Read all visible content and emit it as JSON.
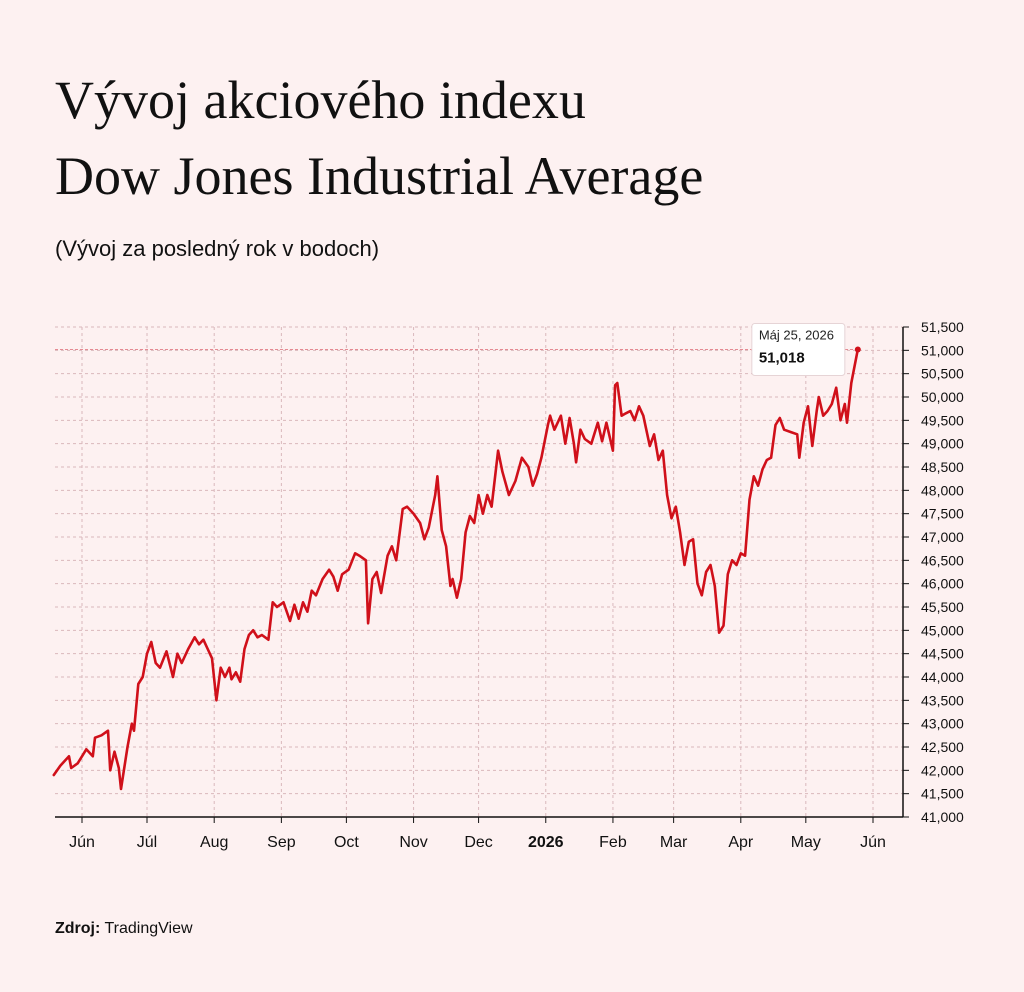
{
  "title_line1": "Vývoj akciového indexu",
  "title_line2": "Dow Jones Industrial Average",
  "subtitle": "(Vývoj za posledný rok v bodoch)",
  "source_label": "Zdroj:",
  "source_name": "TradingView",
  "colors": {
    "background": "#fdf1f1",
    "line": "#d0101a",
    "grid": "#d9b8bc",
    "axis": "#111111"
  },
  "chart_data": {
    "type": "line",
    "title": "Vývoj akciového indexu Dow Jones Industrial Average",
    "subtitle": "(Vývoj za posledný rok v bodoch)",
    "xlabel": "",
    "ylabel": "",
    "ylim": [
      41000,
      51500
    ],
    "y_ticks": [
      41000,
      41500,
      42000,
      42500,
      43000,
      43500,
      44000,
      44500,
      45000,
      45500,
      46000,
      46500,
      47000,
      47500,
      48000,
      48500,
      49000,
      49500,
      50000,
      50500,
      51000,
      51500
    ],
    "y_tick_labels": [
      "41,000",
      "41,500",
      "42,000",
      "42,500",
      "43,000",
      "43,500",
      "44,000",
      "44,500",
      "45,000",
      "45,500",
      "46,000",
      "46,500",
      "47,000",
      "47,500",
      "48,000",
      "48,500",
      "49,000",
      "49,500",
      "50,000",
      "50,500",
      "51,000",
      "51,500"
    ],
    "x_ticks": [
      {
        "label": "Jún",
        "date": "2025-06-01",
        "bold": false
      },
      {
        "label": "Júl",
        "date": "2025-07-01",
        "bold": false
      },
      {
        "label": "Aug",
        "date": "2025-08-01",
        "bold": false
      },
      {
        "label": "Sep",
        "date": "2025-09-01",
        "bold": false
      },
      {
        "label": "Oct",
        "date": "2025-10-01",
        "bold": false
      },
      {
        "label": "Nov",
        "date": "2025-11-01",
        "bold": false
      },
      {
        "label": "Dec",
        "date": "2025-12-01",
        "bold": false
      },
      {
        "label": "2026",
        "date": "2026-01-01",
        "bold": true
      },
      {
        "label": "Feb",
        "date": "2026-02-01",
        "bold": false
      },
      {
        "label": "Mar",
        "date": "2026-03-01",
        "bold": false
      },
      {
        "label": "Apr",
        "date": "2026-04-01",
        "bold": false
      },
      {
        "label": "May",
        "date": "2026-05-01",
        "bold": false
      },
      {
        "label": "Jún",
        "date": "2026-06-01",
        "bold": false
      }
    ],
    "grid": true,
    "tooltip": {
      "date_label": "Máj 25, 2026",
      "value_label": "51,018",
      "date": "2026-05-25",
      "value": 51018
    },
    "series": [
      {
        "values": [
          [
            "2025-05-19",
            41900
          ],
          [
            "2025-05-22",
            42100
          ],
          [
            "2025-05-26",
            42300
          ],
          [
            "2025-05-27",
            42050
          ],
          [
            "2025-05-30",
            42150
          ],
          [
            "2025-06-03",
            42450
          ],
          [
            "2025-06-06",
            42300
          ],
          [
            "2025-06-07",
            42700
          ],
          [
            "2025-06-10",
            42750
          ],
          [
            "2025-06-13",
            42850
          ],
          [
            "2025-06-14",
            42000
          ],
          [
            "2025-06-16",
            42400
          ],
          [
            "2025-06-18",
            42050
          ],
          [
            "2025-06-19",
            41600
          ],
          [
            "2025-06-22",
            42500
          ],
          [
            "2025-06-24",
            43000
          ],
          [
            "2025-06-25",
            42850
          ],
          [
            "2025-06-27",
            43850
          ],
          [
            "2025-06-29",
            44000
          ],
          [
            "2025-07-01",
            44500
          ],
          [
            "2025-07-03",
            44750
          ],
          [
            "2025-07-05",
            44300
          ],
          [
            "2025-07-07",
            44200
          ],
          [
            "2025-07-10",
            44550
          ],
          [
            "2025-07-13",
            44000
          ],
          [
            "2025-07-15",
            44500
          ],
          [
            "2025-07-17",
            44300
          ],
          [
            "2025-07-20",
            44600
          ],
          [
            "2025-07-23",
            44850
          ],
          [
            "2025-07-25",
            44700
          ],
          [
            "2025-07-27",
            44800
          ],
          [
            "2025-07-29",
            44600
          ],
          [
            "2025-07-31",
            44400
          ],
          [
            "2025-08-02",
            43500
          ],
          [
            "2025-08-04",
            44200
          ],
          [
            "2025-08-06",
            44000
          ],
          [
            "2025-08-08",
            44200
          ],
          [
            "2025-08-09",
            43950
          ],
          [
            "2025-08-11",
            44100
          ],
          [
            "2025-08-13",
            43900
          ],
          [
            "2025-08-15",
            44600
          ],
          [
            "2025-08-17",
            44900
          ],
          [
            "2025-08-19",
            45000
          ],
          [
            "2025-08-21",
            44850
          ],
          [
            "2025-08-23",
            44900
          ],
          [
            "2025-08-26",
            44800
          ],
          [
            "2025-08-28",
            45600
          ],
          [
            "2025-08-30",
            45500
          ],
          [
            "2025-09-02",
            45600
          ],
          [
            "2025-09-05",
            45200
          ],
          [
            "2025-09-07",
            45550
          ],
          [
            "2025-09-09",
            45250
          ],
          [
            "2025-09-11",
            45600
          ],
          [
            "2025-09-13",
            45400
          ],
          [
            "2025-09-15",
            45850
          ],
          [
            "2025-09-17",
            45750
          ],
          [
            "2025-09-20",
            46100
          ],
          [
            "2025-09-23",
            46300
          ],
          [
            "2025-09-25",
            46150
          ],
          [
            "2025-09-27",
            45850
          ],
          [
            "2025-09-29",
            46200
          ],
          [
            "2025-10-02",
            46300
          ],
          [
            "2025-10-05",
            46650
          ],
          [
            "2025-10-07",
            46600
          ],
          [
            "2025-10-10",
            46500
          ],
          [
            "2025-10-11",
            45150
          ],
          [
            "2025-10-13",
            46100
          ],
          [
            "2025-10-15",
            46250
          ],
          [
            "2025-10-17",
            45800
          ],
          [
            "2025-10-20",
            46600
          ],
          [
            "2025-10-22",
            46800
          ],
          [
            "2025-10-24",
            46500
          ],
          [
            "2025-10-27",
            47600
          ],
          [
            "2025-10-29",
            47650
          ],
          [
            "2025-11-01",
            47500
          ],
          [
            "2025-11-04",
            47300
          ],
          [
            "2025-11-06",
            46950
          ],
          [
            "2025-11-08",
            47200
          ],
          [
            "2025-11-11",
            47900
          ],
          [
            "2025-11-12",
            48300
          ],
          [
            "2025-11-14",
            47150
          ],
          [
            "2025-11-16",
            46800
          ],
          [
            "2025-11-18",
            45950
          ],
          [
            "2025-11-19",
            46100
          ],
          [
            "2025-11-21",
            45700
          ],
          [
            "2025-11-23",
            46100
          ],
          [
            "2025-11-25",
            47100
          ],
          [
            "2025-11-27",
            47450
          ],
          [
            "2025-11-29",
            47300
          ],
          [
            "2025-12-01",
            47900
          ],
          [
            "2025-12-03",
            47500
          ],
          [
            "2025-12-05",
            47900
          ],
          [
            "2025-12-07",
            47650
          ],
          [
            "2025-12-10",
            48850
          ],
          [
            "2025-12-12",
            48400
          ],
          [
            "2025-12-15",
            47900
          ],
          [
            "2025-12-18",
            48200
          ],
          [
            "2025-12-21",
            48700
          ],
          [
            "2025-12-24",
            48500
          ],
          [
            "2025-12-26",
            48100
          ],
          [
            "2025-12-28",
            48350
          ],
          [
            "2025-12-30",
            48700
          ],
          [
            "2026-01-02",
            49400
          ],
          [
            "2026-01-03",
            49600
          ],
          [
            "2026-01-05",
            49300
          ],
          [
            "2026-01-08",
            49600
          ],
          [
            "2026-01-10",
            49000
          ],
          [
            "2026-01-12",
            49550
          ],
          [
            "2026-01-14",
            49000
          ],
          [
            "2026-01-15",
            48600
          ],
          [
            "2026-01-17",
            49300
          ],
          [
            "2026-01-19",
            49100
          ],
          [
            "2026-01-22",
            49000
          ],
          [
            "2026-01-25",
            49450
          ],
          [
            "2026-01-27",
            49050
          ],
          [
            "2026-01-29",
            49450
          ],
          [
            "2026-02-01",
            48850
          ],
          [
            "2026-02-02",
            50250
          ],
          [
            "2026-02-03",
            50300
          ],
          [
            "2026-02-05",
            49600
          ],
          [
            "2026-02-07",
            49650
          ],
          [
            "2026-02-09",
            49700
          ],
          [
            "2026-02-11",
            49500
          ],
          [
            "2026-02-13",
            49800
          ],
          [
            "2026-02-15",
            49600
          ],
          [
            "2026-02-18",
            48950
          ],
          [
            "2026-02-20",
            49200
          ],
          [
            "2026-02-22",
            48650
          ],
          [
            "2026-02-24",
            48850
          ],
          [
            "2026-02-26",
            47900
          ],
          [
            "2026-02-28",
            47400
          ],
          [
            "2026-03-02",
            47650
          ],
          [
            "2026-03-04",
            47100
          ],
          [
            "2026-03-06",
            46400
          ],
          [
            "2026-03-08",
            46900
          ],
          [
            "2026-03-10",
            46950
          ],
          [
            "2026-03-12",
            46000
          ],
          [
            "2026-03-14",
            45750
          ],
          [
            "2026-03-16",
            46250
          ],
          [
            "2026-03-18",
            46400
          ],
          [
            "2026-03-20",
            45950
          ],
          [
            "2026-03-22",
            44950
          ],
          [
            "2026-03-24",
            45100
          ],
          [
            "2026-03-26",
            46200
          ],
          [
            "2026-03-28",
            46500
          ],
          [
            "2026-03-30",
            46400
          ],
          [
            "2026-04-01",
            46650
          ],
          [
            "2026-04-03",
            46600
          ],
          [
            "2026-04-05",
            47800
          ],
          [
            "2026-04-07",
            48300
          ],
          [
            "2026-04-09",
            48100
          ],
          [
            "2026-04-11",
            48450
          ],
          [
            "2026-04-13",
            48650
          ],
          [
            "2026-04-15",
            48700
          ],
          [
            "2026-04-17",
            49400
          ],
          [
            "2026-04-19",
            49550
          ],
          [
            "2026-04-21",
            49300
          ],
          [
            "2026-04-24",
            49250
          ],
          [
            "2026-04-27",
            49200
          ],
          [
            "2026-04-28",
            48700
          ],
          [
            "2026-04-30",
            49450
          ],
          [
            "2026-05-02",
            49800
          ],
          [
            "2026-05-04",
            48950
          ],
          [
            "2026-05-06",
            49700
          ],
          [
            "2026-05-07",
            50000
          ],
          [
            "2026-05-09",
            49600
          ],
          [
            "2026-05-11",
            49700
          ],
          [
            "2026-05-13",
            49850
          ],
          [
            "2026-05-15",
            50200
          ],
          [
            "2026-05-17",
            49500
          ],
          [
            "2026-05-19",
            49850
          ],
          [
            "2026-05-20",
            49450
          ],
          [
            "2026-05-22",
            50300
          ],
          [
            "2026-05-25",
            51018
          ]
        ]
      }
    ]
  }
}
